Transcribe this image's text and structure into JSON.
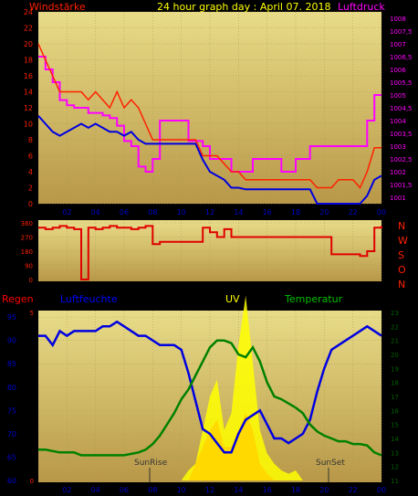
{
  "header": {
    "title": "24 hour graph day : April 07. 2018",
    "wind_label": "Windstärke",
    "pressure_label": "Luftdruck"
  },
  "lower": {
    "rain_label": "Regen",
    "humidity_label": "Luftfeuchte",
    "uv_label": "UV",
    "temp_label": "Temperatur",
    "sunrise_label": "SunRise",
    "sunset_label": "SunSet"
  },
  "colors": {
    "wind_gust": "#ff2000",
    "wind_avg": "#0000e0",
    "pressure": "#ff00ff",
    "direction": "#e00000",
    "humidity": "#0000e0",
    "temperature": "#008000",
    "uv": "#ffff00",
    "rain": "#ff0000",
    "background": "#000000",
    "plot_top": "#e8dc88",
    "plot_bottom": "#b89848"
  },
  "chart_data": [
    {
      "type": "line",
      "title": "24 hour graph day : April 07. 2018",
      "x_ticks": [
        "02",
        "04",
        "06",
        "08",
        "10",
        "12",
        "14",
        "16",
        "18",
        "20",
        "22",
        "00"
      ],
      "left_axis": {
        "label": "Windstärke",
        "ylim": [
          0,
          24
        ],
        "ticks": [
          "0",
          "2",
          "4",
          "6",
          "8",
          "10",
          "12",
          "14",
          "16",
          "18",
          "20",
          "22",
          "24"
        ]
      },
      "right_axis": {
        "label": "Luftdruck",
        "ylim": [
          1000.75,
          1008.25
        ],
        "ticks": [
          "1001",
          "1001,5",
          "1002",
          "1002,5",
          "1003",
          "1003,5",
          "1004",
          "1004,5",
          "1005",
          "1005,5",
          "1006",
          "1006,5",
          "1007",
          "1007,5",
          "1008"
        ]
      },
      "x": [
        0,
        0.5,
        1,
        1.5,
        2,
        2.5,
        3,
        3.5,
        4,
        4.5,
        5,
        5.5,
        6,
        6.5,
        7,
        7.5,
        8,
        8.5,
        9,
        9.5,
        10,
        10.5,
        11,
        11.5,
        12,
        12.5,
        13,
        13.5,
        14,
        14.5,
        15,
        15.5,
        16,
        16.5,
        17,
        17.5,
        18,
        18.5,
        19,
        19.5,
        20,
        20.5,
        21,
        21.5,
        22,
        22.5,
        23,
        23.5,
        24
      ],
      "series": [
        {
          "name": "gust",
          "axis": "left",
          "values": [
            20,
            18,
            16,
            14,
            14,
            14,
            14,
            13,
            14,
            13,
            12,
            14,
            12,
            13,
            12,
            10,
            8,
            8,
            8,
            8,
            8,
            8,
            8,
            6,
            6,
            6,
            5,
            4,
            4,
            3,
            3,
            3,
            3,
            3,
            3,
            3,
            3,
            3,
            3,
            2,
            2,
            2,
            3,
            3,
            3,
            2,
            4,
            7,
            7
          ]
        },
        {
          "name": "average",
          "axis": "left",
          "values": [
            11,
            10,
            9,
            8.5,
            9,
            9.5,
            10,
            9.5,
            10,
            9.5,
            9,
            9,
            8.5,
            9,
            8,
            7.5,
            7.5,
            7.5,
            7.5,
            7.5,
            7.5,
            7.5,
            7.5,
            5.5,
            4,
            3.5,
            3,
            2,
            2,
            1.8,
            1.8,
            1.8,
            1.8,
            1.8,
            1.8,
            1.8,
            1.8,
            1.8,
            1.8,
            0,
            0,
            0,
            0,
            0,
            0,
            0,
            1,
            3,
            3.5
          ]
        },
        {
          "name": "pressure",
          "axis": "right",
          "values": [
            1006.5,
            1006,
            1005.5,
            1004.8,
            1004.6,
            1004.5,
            1004.5,
            1004.3,
            1004.3,
            1004.2,
            1004.1,
            1003.8,
            1003.2,
            1003,
            1002.2,
            1002,
            1002.5,
            1004,
            1004,
            1004,
            1004,
            1003.2,
            1003.2,
            1003,
            1002.5,
            1002.5,
            1002.5,
            1002,
            1002,
            1002,
            1002.5,
            1002.5,
            1002.5,
            1002.5,
            1002,
            1002,
            1002.5,
            1002.5,
            1003,
            1003,
            1003,
            1003,
            1003,
            1003,
            1003,
            1003,
            1004,
            1005,
            1005
          ]
        }
      ]
    },
    {
      "type": "line",
      "axis_ticks": [
        "0",
        "90",
        "180",
        "270",
        "360"
      ],
      "right_labels": [
        "N",
        "W",
        "S",
        "O",
        "N"
      ],
      "ylim": [
        0,
        360
      ],
      "x": [
        0,
        0.5,
        1,
        1.5,
        2,
        2.5,
        3,
        3.5,
        4,
        4.5,
        5,
        5.5,
        6,
        6.5,
        7,
        7.5,
        8,
        8.5,
        9,
        9.5,
        10,
        10.5,
        11,
        11.5,
        12,
        12.5,
        13,
        13.5,
        14,
        14.5,
        15,
        15.5,
        16,
        16.5,
        17,
        17.5,
        18,
        18.5,
        19,
        19.5,
        20,
        20.5,
        21,
        21.5,
        22,
        22.5,
        23,
        23.5,
        24
      ],
      "series": [
        {
          "name": "direction",
          "values": [
            330,
            320,
            330,
            340,
            330,
            320,
            0,
            330,
            320,
            330,
            340,
            330,
            330,
            320,
            330,
            340,
            225,
            240,
            240,
            240,
            240,
            240,
            240,
            330,
            300,
            270,
            320,
            270,
            270,
            270,
            270,
            270,
            270,
            270,
            270,
            270,
            270,
            270,
            270,
            270,
            270,
            160,
            160,
            160,
            160,
            150,
            180,
            330,
            340
          ]
        }
      ]
    },
    {
      "type": "line",
      "x_ticks": [
        "02",
        "04",
        "06",
        "08",
        "10",
        "12",
        "14",
        "16",
        "18",
        "20",
        "22",
        "00"
      ],
      "left_axis": {
        "label": "Luftfeuchte",
        "ylim": [
          60,
          96
        ],
        "ticks": [
          "60",
          "65",
          "70",
          "75",
          "80",
          "85",
          "90",
          "95"
        ]
      },
      "right_axis": {
        "label": "Temperatur",
        "ylim": [
          11,
          23
        ],
        "ticks": [
          "11",
          "12",
          "13",
          "14",
          "15",
          "16",
          "17",
          "18",
          "19",
          "20",
          "21",
          "22",
          "23"
        ]
      },
      "uv_axis": {
        "label": "UV",
        "ticks": [
          "0",
          "5"
        ]
      },
      "x": [
        0,
        0.5,
        1,
        1.5,
        2,
        2.5,
        3,
        3.5,
        4,
        4.5,
        5,
        5.5,
        6,
        6.5,
        7,
        7.5,
        8,
        8.5,
        9,
        9.5,
        10,
        10.5,
        11,
        11.5,
        12,
        12.5,
        13,
        13.5,
        14,
        14.5,
        15,
        15.5,
        16,
        16.5,
        17,
        17.5,
        18,
        18.5,
        19,
        19.5,
        20,
        20.5,
        21,
        21.5,
        22,
        22.5,
        23,
        23.5,
        24
      ],
      "series": [
        {
          "name": "humidity",
          "axis": "left",
          "values": [
            91,
            91,
            89,
            92,
            91,
            92,
            92,
            92,
            92,
            93,
            93,
            94,
            93,
            92,
            91,
            91,
            90,
            89,
            89,
            89,
            88,
            83,
            77,
            71,
            70,
            68,
            66,
            66,
            70,
            73,
            74,
            75,
            72,
            69,
            69,
            68,
            69,
            70,
            73,
            79,
            84,
            88,
            89,
            90,
            91,
            92,
            93,
            92,
            91
          ]
        },
        {
          "name": "temperature",
          "axis": "right",
          "values": [
            13.2,
            13.2,
            13.1,
            13.0,
            13.0,
            13.0,
            12.8,
            12.8,
            12.8,
            12.8,
            12.8,
            12.8,
            12.8,
            12.9,
            13.0,
            13.2,
            13.6,
            14.2,
            15.0,
            15.8,
            16.8,
            17.5,
            18.5,
            19.5,
            20.5,
            21.0,
            21.0,
            20.8,
            20.0,
            19.8,
            20.5,
            19.5,
            18.0,
            17.0,
            16.8,
            16.5,
            16.2,
            15.8,
            15.0,
            14.5,
            14.2,
            14.0,
            13.8,
            13.8,
            13.6,
            13.6,
            13.5,
            13.0,
            12.8
          ]
        },
        {
          "name": "uv",
          "axis": "uv",
          "values": [
            0,
            0,
            0,
            0,
            0,
            0,
            0,
            0,
            0,
            0,
            0,
            0,
            0,
            0,
            0,
            0,
            0,
            0,
            0,
            0,
            0,
            0.3,
            0.5,
            1.5,
            2.5,
            3,
            1.5,
            2,
            4,
            5.5,
            3.5,
            1.5,
            0.8,
            0.5,
            0.3,
            0.2,
            0.3,
            0,
            0,
            0,
            0,
            0,
            0,
            0,
            0,
            0,
            0,
            0,
            0
          ]
        },
        {
          "name": "rain",
          "axis": "uv",
          "values": [
            0,
            0,
            0,
            0,
            0,
            0,
            0,
            0,
            0,
            0,
            0,
            0,
            0,
            0,
            0,
            0,
            0,
            0,
            0,
            0,
            0,
            0,
            0.5,
            1.0,
            1.5,
            1.8,
            1.0,
            1.0,
            1.5,
            2.0,
            1.5,
            0.5,
            0.2,
            0,
            0,
            0,
            0,
            0,
            0,
            0,
            0,
            0,
            0,
            0,
            0,
            0,
            0,
            0,
            0
          ]
        }
      ]
    }
  ]
}
